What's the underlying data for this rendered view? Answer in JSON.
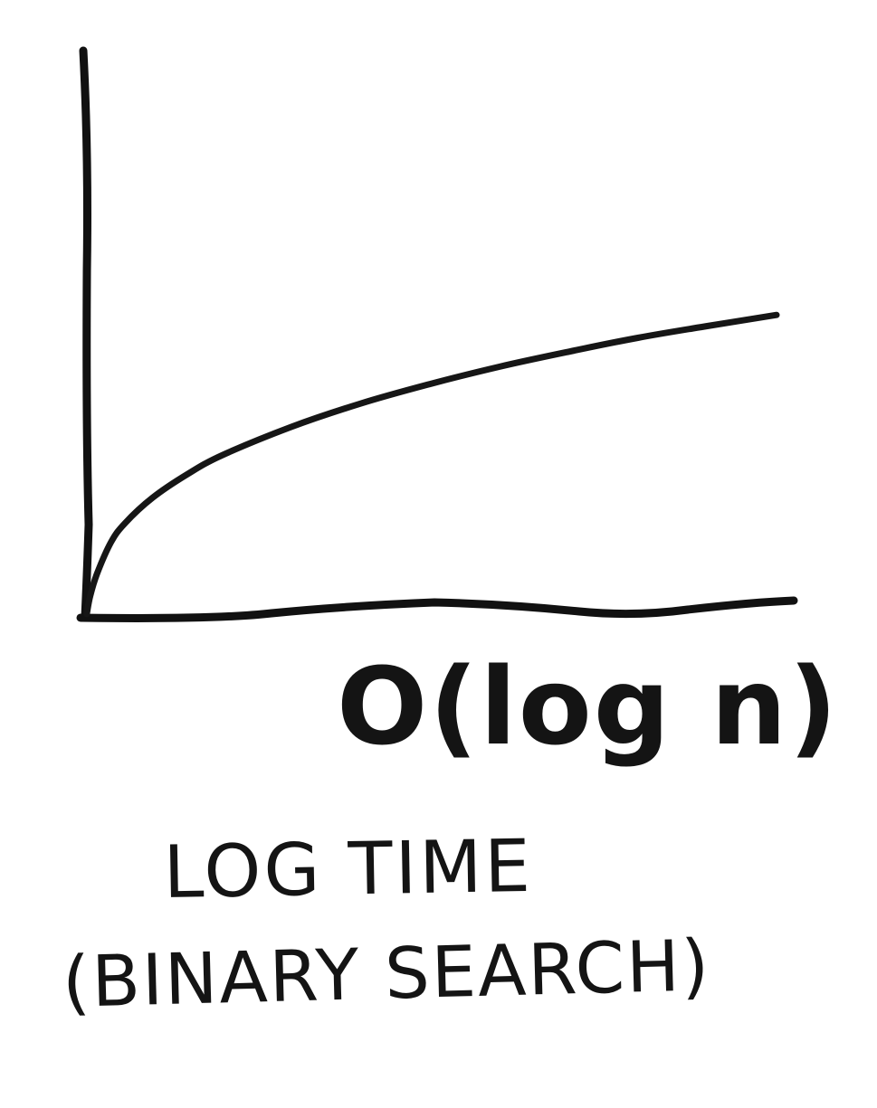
{
  "chart_data": {
    "type": "line",
    "title": "LOG TIME",
    "subtitle": "(BINARY SEARCH)",
    "notation": "O(log n)",
    "xlabel": "",
    "ylabel": "",
    "xlim": [
      0,
      100
    ],
    "ylim": [
      0,
      100
    ],
    "grid": false,
    "legend": "none",
    "series": [
      {
        "name": "O(log n)",
        "function": "log",
        "x": [
          0.5,
          1,
          2,
          4,
          6,
          10,
          15,
          20,
          30,
          40,
          50,
          60,
          70,
          80,
          90,
          100
        ],
        "y": [
          0,
          3.3,
          7.3,
          12.9,
          16.3,
          20.9,
          25.1,
          28.5,
          33.6,
          37.8,
          41.3,
          44.4,
          47.1,
          49.6,
          51.7,
          53.7
        ]
      }
    ]
  }
}
